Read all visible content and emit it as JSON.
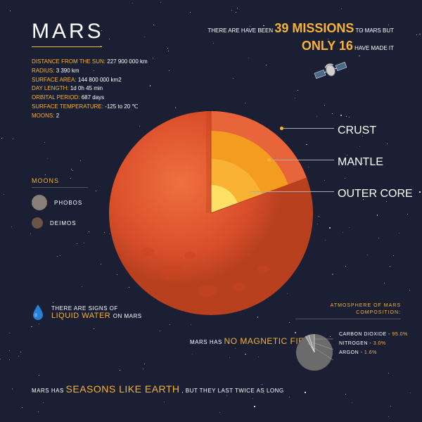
{
  "colors": {
    "background": "#1a1f33",
    "accent": "#f9b234",
    "text": "#ffffff",
    "muted": "#aaaaaa"
  },
  "title": "MARS",
  "facts": [
    {
      "label": "DISTANCE FROM THE SUN:",
      "value": "227 900 000 km"
    },
    {
      "label": "RADIUS:",
      "value": "3 390 km"
    },
    {
      "label": "SURFACE AREA:",
      "value": "144 800 000 km2"
    },
    {
      "label": "DAY LENGTH:",
      "value": "1d 0h 45 min"
    },
    {
      "label": "ORBITAL PERIOD:",
      "value": "687 days"
    },
    {
      "label": "SURFACE TEMPERATURE:",
      "value": "-125 to 20 ℃"
    },
    {
      "label": "MOONS:",
      "value": "2"
    }
  ],
  "missions": {
    "prefix": "THERE ARE HAVE BEEN",
    "count": "39 MISSIONS",
    "mid": "TO MARS BUT",
    "only": "ONLY 16",
    "suffix": "HAVE MADE IT"
  },
  "planet": {
    "layers": {
      "crust": {
        "label": "CRUST",
        "color": "#d94e2a",
        "highlight": "#e8643a"
      },
      "mantle": {
        "label": "MANTLE",
        "color": "#f39c1f"
      },
      "outer_core": {
        "label": "OUTER CORE",
        "color": "#f9b234"
      },
      "inner_core": {
        "color": "#ffe066"
      }
    }
  },
  "moons": {
    "title": "MOONS",
    "items": [
      {
        "name": "PHOBOS",
        "diameter": 22,
        "color": "#8a7f78"
      },
      {
        "name": "DEIMOS",
        "diameter": 16,
        "color": "#6b5348"
      }
    ]
  },
  "water": {
    "prefix": "THERE ARE SIGNS OF",
    "highlight": "LIQUID WATER",
    "suffix": "ON MARS",
    "drop_color": "#2a7fd4"
  },
  "magnetic": {
    "prefix": "MARS HAS",
    "highlight": "NO MAGNETIC FIELD"
  },
  "seasons": {
    "prefix": "MARS HAS",
    "highlight": "SEASONS LIKE EARTH",
    "suffix": ", BUT THEY LAST TWICE AS LONG"
  },
  "atmosphere": {
    "title_line1": "ATMOSPHERE OF MARS",
    "title_line2": "COMPOSITION:",
    "pie_color": "#6b6b6b",
    "items": [
      {
        "name": "CARBON DIOXIDE",
        "pct": "95.0%",
        "angle": 342
      },
      {
        "name": "NITROGEN",
        "pct": "3.0%",
        "angle": 10.8
      },
      {
        "name": "ARGON",
        "pct": "1.6%",
        "angle": 5.76
      }
    ]
  }
}
